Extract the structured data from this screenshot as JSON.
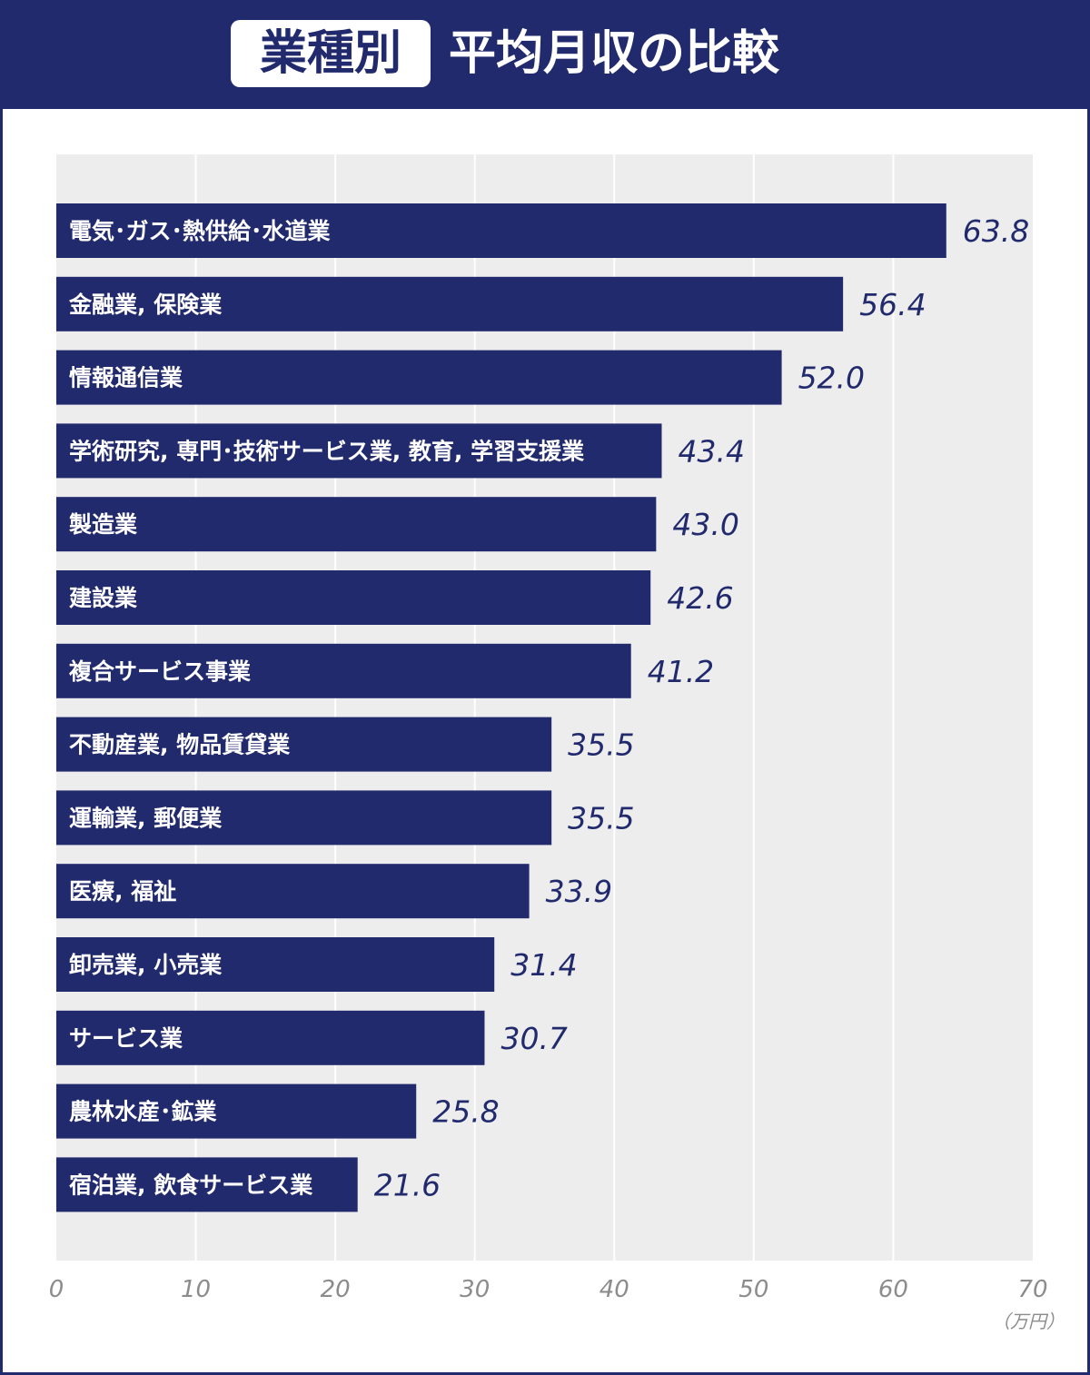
{
  "header": {
    "badge": "業種別",
    "title": "平均月収の比較"
  },
  "colors": {
    "bar": "#222a6e",
    "plot_background": "#ededed",
    "grid": "#ffffff",
    "tick_text": "#8c8c8c"
  },
  "chart_data": {
    "type": "bar",
    "orientation": "horizontal",
    "categories": [
      "電気･ガス･熱供給･水道業",
      "金融業, 保険業",
      "情報通信業",
      "学術研究, 専門･技術サービス業, 教育, 学習支援業",
      "製造業",
      "建設業",
      "複合サービス事業",
      "不動産業, 物品賃貸業",
      "運輸業, 郵便業",
      "医療, 福祉",
      "卸売業, 小売業",
      "サービス業",
      "農林水産･鉱業",
      "宿泊業, 飲食サービス業"
    ],
    "values": [
      63.8,
      56.4,
      52.0,
      43.4,
      43.0,
      42.6,
      41.2,
      35.5,
      35.5,
      33.9,
      31.4,
      30.7,
      25.8,
      21.6
    ],
    "value_labels": [
      "63.8",
      "56.4",
      "52.0",
      "43.4",
      "43.0",
      "42.6",
      "41.2",
      "35.5",
      "35.5",
      "33.9",
      "31.4",
      "30.7",
      "25.8",
      "21.6"
    ],
    "xlim": [
      0,
      70
    ],
    "xticks": [
      0,
      10,
      20,
      30,
      40,
      50,
      60,
      70
    ],
    "unit": "（万円）",
    "grid": true
  }
}
